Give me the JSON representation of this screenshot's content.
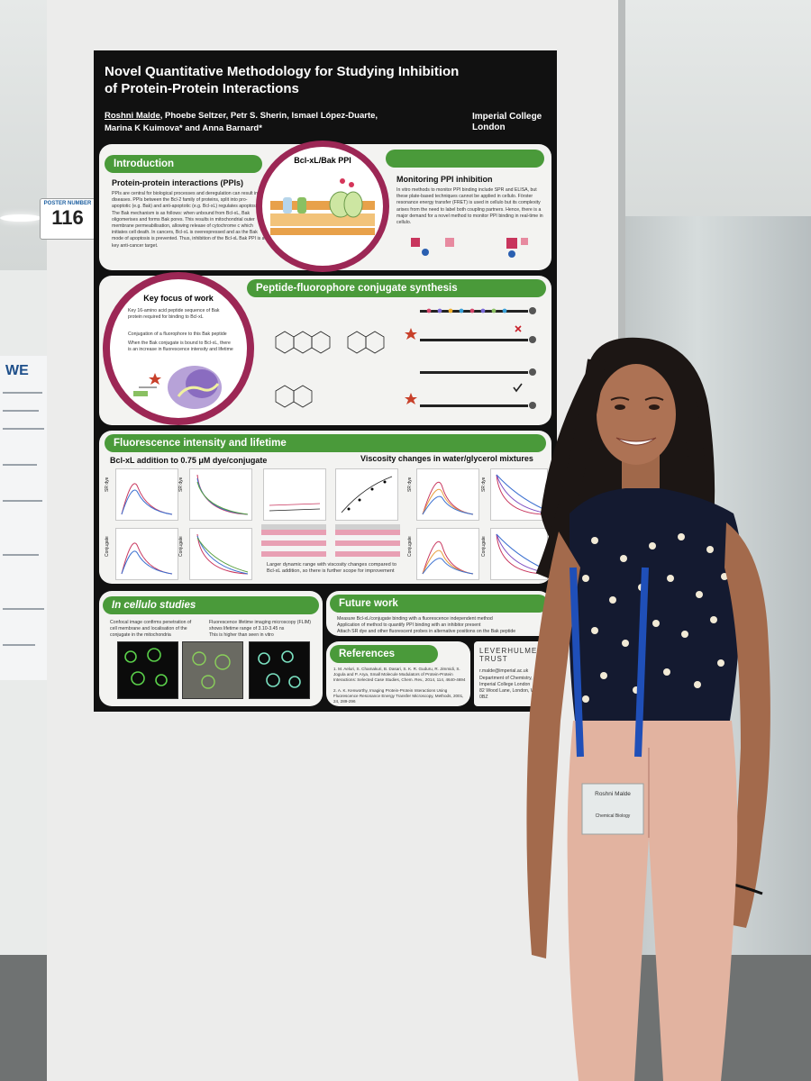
{
  "poster": {
    "board_number_label": "POSTER NUMBER",
    "board_number": "116",
    "title": "Novel Quantitative Methodology for Studying Inhibition of Protein-Protein Interactions",
    "presenter": "Roshni Malde",
    "authors_rest": ", Phoebe Seltzer, Petr S. Sherin, Ismael López-Duarte, Marina K Kuimova* and Anna Barnard*",
    "affiliation": "Imperial College London",
    "sections": {
      "introduction": "Introduction",
      "intro_subhead": "Protein-protein interactions (PPIs)",
      "intro_text": "PPIs are central for biological processes and deregulation can result in diseases. PPIs between the Bcl-2 family of proteins, split into pro-apoptotic (e.g. Bak) and anti-apoptotic (e.g. Bcl-xL) regulates apoptosis. The Bak mechanism is as follows: when unbound from Bcl-xL, Bak oligomerises and forms Bak pores. This results in mitochondrial outer membrane permeabilisation, allowing release of cytochrome c which initiates cell death. In cancers, Bcl-xL is overexpressed and as the Bak mode of apoptosis is prevented. Thus, inhibition of the Bcl-xL Bak PPI is a key anti-cancer target.",
      "bcl_label": "Bcl-xL/Bak PPI",
      "monitoring": "Monitoring PPI inhibition",
      "monitoring_text": "In vitro methods to monitor PPI binding include SPR and ELISA, but these plate-based techniques cannot be applied in cellulo. Förster resonance energy transfer (FRET) is used in cellulo but its complexity arises from the need to label both coupling partners. Hence, there is a major demand for a novel method to monitor PPI binding in real-time in cellulo.",
      "key_focus": "Key focus of work",
      "key_focus_items": [
        "Key 16-amino acid peptide sequence of Bak protein required for binding to Bcl-xL",
        "Conjugation of a fluorophore to this Bak peptide",
        "When the Bak conjugate is bound to Bcl-xL, there is an increase in fluorescence intensity and lifetime"
      ],
      "peptide": "Peptide-fluorophore conjugate synthesis",
      "fluorescence": "Fluorescence intensity and lifetime",
      "bcl_addition": "Bcl-xL addition to 0.75 μM dye/conjugate",
      "viscosity": "Viscosity changes in water/glycerol mixtures",
      "dynamic_range": "Larger dynamic range with viscosity changes compared to Bcl-xL addition, so there is further scope for improvement",
      "in_cellulo": "In cellulo studies",
      "in_cellulo_items": [
        "Confocal image confirms penetration of cell membrane and localisation of the conjugate in the mitochondria",
        "Fluorescence lifetime imaging microscopy (FLIM) shows lifetime range of 3.10-3.45 ns",
        "This is higher than seen in vitro"
      ],
      "future": "Future work",
      "future_items": [
        "Measure Bcl-xL/conjugate binding with a fluorescence independent method",
        "Application of method to quantify PPI binding with an inhibitor present",
        "Attach SR dye and other fluorescent probes in alternative positions on the Bak peptide"
      ],
      "references": "References",
      "reference_items": [
        "1. M. Aeluri, S. Chamakuri, B. Dasari, S. K. R. Guduru, R. Jimmidi, S. Jogula and P. Arya, Small Molecule Modulators of Protein-Protein Interactions: Selected Case Studies, Chem. Rev., 2014, 114, 4640-4694",
        "2. A. K. Kenworthy, Imaging Protein-Protein Interactions Using Fluorescence Resonance Energy Transfer Microscopy, Methods, 2001, 24, 289-296"
      ],
      "sponsor": "LEVERHULME TRUST",
      "contact_email": "r.malde@imperial.ac.uk",
      "contact_dept": "Department of Chemistry, Imperial College London",
      "contact_address": "82 Wood Lane, London, W12 0BZ"
    },
    "axis": {
      "sr_dye": "SR dye",
      "conjugate": "Conjugate"
    }
  },
  "badge": {
    "name": "Roshni Malde",
    "dept": "Chemical Biology"
  },
  "neighbour": {
    "heading": "WE"
  },
  "colors": {
    "section_green": "#4a9a3a",
    "ring_crimson": "#9c2755",
    "poster_black": "#111111"
  }
}
